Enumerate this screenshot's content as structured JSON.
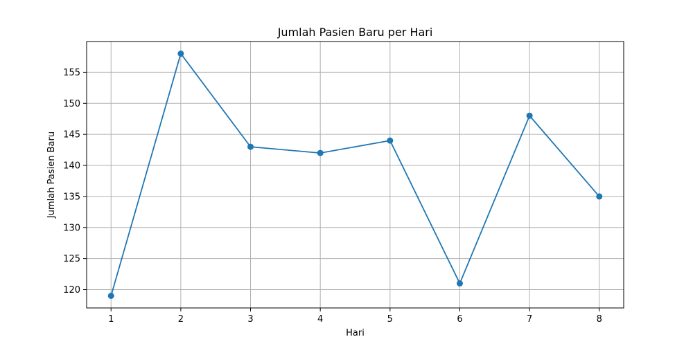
{
  "chart_data": {
    "type": "line",
    "title": "Jumlah Pasien Baru per Hari",
    "xlabel": "Hari",
    "ylabel": "Jumlah Pasien Baru",
    "x": [
      1,
      2,
      3,
      4,
      5,
      6,
      7,
      8
    ],
    "x_ticks": [
      "1",
      "2",
      "3",
      "4",
      "5",
      "6",
      "7",
      "8"
    ],
    "xlim": [
      0.65,
      8.35
    ],
    "ylim": [
      117.05,
      159.95
    ],
    "y_ticks": [
      120,
      125,
      130,
      135,
      140,
      145,
      150,
      155
    ],
    "series": [
      {
        "values": [
          119,
          158,
          143,
          142,
          144,
          121,
          148,
          135
        ],
        "color": "#1f77b4",
        "marker": "circle"
      }
    ],
    "grid": true
  }
}
